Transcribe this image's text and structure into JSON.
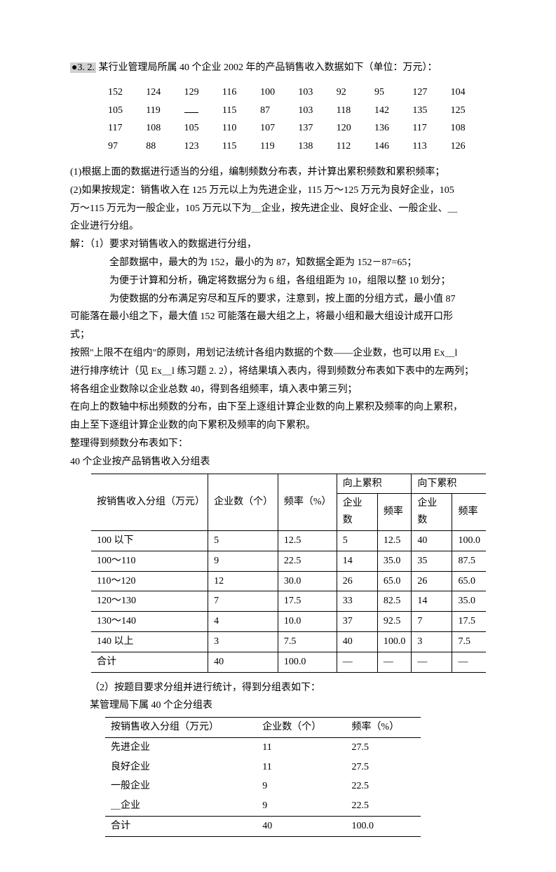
{
  "title_prefix": "●3. 2.",
  "title_text": "某行业管理局所属 40 个企业 2002 年的产品销售收入数据如下（单位：万元）：",
  "raw_data": [
    [
      "152",
      "124",
      "129",
      "116",
      "100",
      "103",
      "92",
      "95",
      "127",
      "104"
    ],
    [
      "105",
      "119",
      "—",
      "115",
      "87",
      "103",
      "118",
      "142",
      "135",
      "125"
    ],
    [
      "117",
      "108",
      "105",
      "110",
      "107",
      "137",
      "120",
      "136",
      "117",
      "108"
    ],
    [
      "97",
      "88",
      "123",
      "115",
      "119",
      "138",
      "112",
      "146",
      "113",
      "126"
    ]
  ],
  "q1": "(1)根据上面的数据进行适当的分组，编制频数分布表，并计算出累积频数和累积频率；",
  "q2a": "(2)如果按规定：销售收入在 125 万元以上为先进企业，115 万～125 万元为良好企业，105",
  "q2b": "万～115 万元为一般企业，105 万元以下为＿企业，按先进企业、良好企业、一般企业、＿",
  "q2c": "企业进行分组。",
  "sol_label": "解：（1）要求对销售收入的数据进行分组，",
  "sol1": "全部数据中，最大的为 152，最小的为 87，知数据全距为 152－87=65；",
  "sol2": "为便于计算和分析，确定将数据分为 6 组，各组组距为 10，组限以整 10 划分；",
  "sol3": "为使数据的分布满足穷尽和互斥的要求，注意到，按上面的分组方式，最小值 87",
  "sol4": "可能落在最小组之下，最大值 152 可能落在最大组之上，将最小组和最大组设计成开口形",
  "sol5": "式；",
  "sol6": "按照\"上限不在组内\"的原则，用划记法统计各组内数据的个数——企业数，也可以用 Ex＿l",
  "sol7": "进行排序统计（见 Ex＿l 练习题 2. 2），将结果填入表内，得到频数分布表如下表中的左两列；",
  "sol8": "将各组企业数除以企业总数 40，得到各组频率，填入表中第三列；",
  "sol9": "在向上的数轴中标出频数的分布，由下至上逐组计算企业数的向上累积及频率的向上累积，",
  "sol10": "由上至下逐组计算企业数的向下累积及频率的向下累积。",
  "sol11": "整理得到频数分布表如下：",
  "table1_caption": "40 个企业按产品销售收入分组表",
  "t1": {
    "h_group": "按销售收入分组（万元）",
    "h_count": "企业数（个）",
    "h_freq": "频率（%）",
    "h_up": "向上累积",
    "h_down": "向下累积",
    "h_cnt2": "企业数",
    "h_freq2": "频率",
    "rows": [
      {
        "g": "100 以下",
        "n": "5",
        "f": "12.5",
        "un": "5",
        "uf": "12.5",
        "dn": "40",
        "df": "100.0"
      },
      {
        "g": "100～110",
        "n": "9",
        "f": "22.5",
        "un": "14",
        "uf": "35.0",
        "dn": "35",
        "df": "87.5"
      },
      {
        "g": "110～120",
        "n": "12",
        "f": "30.0",
        "un": "26",
        "uf": "65.0",
        "dn": "26",
        "df": "65.0"
      },
      {
        "g": "120～130",
        "n": "7",
        "f": "17.5",
        "un": "33",
        "uf": "82.5",
        "dn": "14",
        "df": "35.0"
      },
      {
        "g": "130～140",
        "n": "4",
        "f": "10.0",
        "un": "37",
        "uf": "92.5",
        "dn": "7",
        "df": "17.5"
      },
      {
        "g": "140 以上",
        "n": "3",
        "f": "7.5",
        "un": "40",
        "uf": "100.0",
        "dn": "3",
        "df": "7.5"
      }
    ],
    "total": {
      "g": "合计",
      "n": "40",
      "f": "100.0",
      "un": "—",
      "uf": "—",
      "dn": "—",
      "df": "—"
    }
  },
  "part2_intro": "（2）按题目要求分组并进行统计，得到分组表如下：",
  "table2_caption": "某管理局下属 40 个企分组表",
  "t2": {
    "h_group": "按销售收入分组（万元）",
    "h_count": "企业数（个）",
    "h_freq": "频率（%）",
    "rows": [
      {
        "g": "先进企业",
        "n": "11",
        "f": "27.5"
      },
      {
        "g": "良好企业",
        "n": "11",
        "f": "27.5"
      },
      {
        "g": "一般企业",
        "n": "9",
        "f": "22.5"
      },
      {
        "g": "＿企业",
        "n": "9",
        "f": "22.5"
      }
    ],
    "total": {
      "g": "合计",
      "n": "40",
      "f": "100.0"
    }
  }
}
